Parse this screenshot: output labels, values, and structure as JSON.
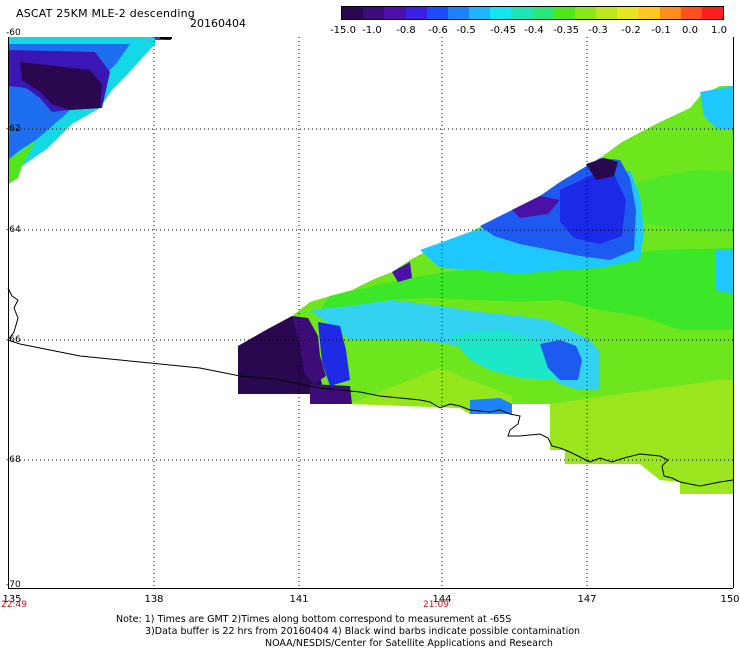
{
  "header": {
    "title": "ASCAT 25KM MLE-2 descending",
    "date": "20160404"
  },
  "colorbar": {
    "labels": [
      "-15.0",
      "-1.0",
      "-0.8",
      "-0.6",
      "-0.5",
      "-0.45",
      "-0.4",
      "-0.35",
      "-0.3",
      "-0.2",
      "-0.1",
      "0.0",
      "1.0"
    ],
    "colors": [
      "#2a0850",
      "#3c0c78",
      "#4b10a8",
      "#3c1ee6",
      "#1e4bff",
      "#1e82ff",
      "#1eb4ff",
      "#14e6f0",
      "#1ee6b4",
      "#28e678",
      "#50e61e",
      "#8ce61e",
      "#bee61e",
      "#e6e61e",
      "#ffc81e",
      "#ff8c1e",
      "#ff501e",
      "#ff1e1e"
    ]
  },
  "axes": {
    "lat_labels": [
      "-60",
      "-62",
      "-64",
      "-66",
      "-68",
      "-70"
    ],
    "lon_labels": [
      "135",
      "138",
      "141",
      "144",
      "147",
      "150"
    ],
    "times": [
      "22:49",
      "21:09"
    ]
  },
  "notes": [
    "Note: 1) Times are GMT 2)Times along bottom correspond to measurement at -65S",
    "3)Data buffer is 22 hrs from 20160404 4) Black wind barbs indicate possible contamination",
    "NOAA/NESDIS/Center for Satellite Applications and Research"
  ]
}
